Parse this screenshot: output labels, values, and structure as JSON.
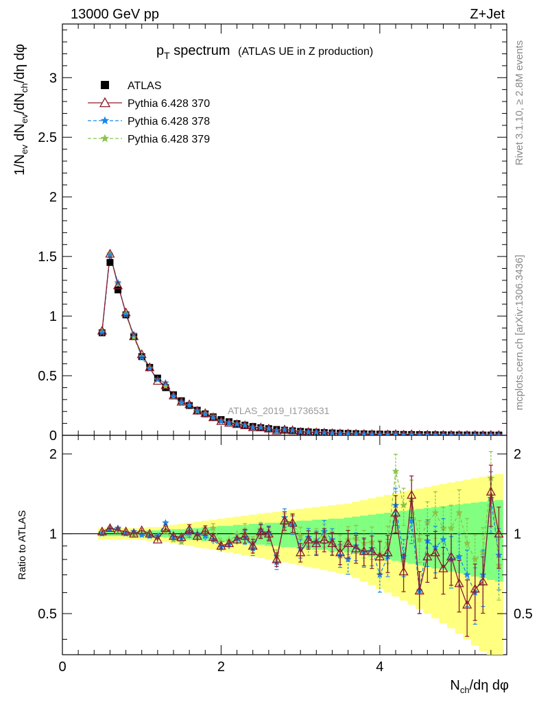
{
  "header": {
    "left": "13000 GeV pp",
    "right": "Z+Jet"
  },
  "title": {
    "main_base": "p",
    "main_sub": "T",
    "main_rest": " spectrum",
    "detail": "(ATLAS UE in Z production)"
  },
  "side_labels": {
    "rivet": "Rivet 3.1.10, ≥ 2.8M events",
    "mcplots": "mcplots.cern.ch [arXiv:1306.3436]"
  },
  "watermark": "ATLAS_2019_I1736531",
  "axes": {
    "top_ylabel": "1/N_ev dN_ev/dN_ch/dη dφ",
    "bottom_ylabel": "Ratio to ATLAS",
    "xlabel": "N_ch/dη dφ",
    "x_ticks": [
      "0",
      "2",
      "4"
    ],
    "top_y_ticks": [
      "0",
      "0.5",
      "1",
      "1.5",
      "2",
      "2.5",
      "3"
    ],
    "ratio_y_ticks": [
      "0.5",
      "1",
      "2"
    ]
  },
  "legend": [
    {
      "label": "ATLAS",
      "style": "data",
      "color": "#000000"
    },
    {
      "label": "Pythia 6.428 370",
      "style": "triangle",
      "color": "#8b1a2b"
    },
    {
      "label": "Pythia 6.428 378",
      "style": "star-dash",
      "color": "#1e88e5"
    },
    {
      "label": "Pythia 6.428 379",
      "style": "star-dash",
      "color": "#8bc34a"
    }
  ],
  "chart_data": {
    "type": "line",
    "xlim": [
      0,
      5.6
    ],
    "ylim": [
      0,
      3.45
    ],
    "ratio_ylim": [
      0.35,
      2.35
    ],
    "ratio_log": true,
    "band_colors": {
      "outer": "#ffff80",
      "inner": "#80ff80"
    },
    "x": [
      0.5,
      0.6,
      0.7,
      0.8,
      0.9,
      1.0,
      1.1,
      1.2,
      1.3,
      1.4,
      1.5,
      1.6,
      1.7,
      1.8,
      1.9,
      2.0,
      2.1,
      2.2,
      2.3,
      2.4,
      2.5,
      2.6,
      2.7,
      2.8,
      2.9,
      3.0,
      3.1,
      3.2,
      3.3,
      3.4,
      3.5,
      3.6,
      3.7,
      3.8,
      3.9,
      4.0,
      4.1,
      4.2,
      4.3,
      4.4,
      4.5,
      4.6,
      4.7,
      4.8,
      4.9,
      5.0,
      5.1,
      5.2,
      5.3,
      5.4,
      5.5
    ],
    "data": [
      0.86,
      1.45,
      1.22,
      1.01,
      0.83,
      0.66,
      0.57,
      0.48,
      0.4,
      0.34,
      0.29,
      0.25,
      0.21,
      0.18,
      0.155,
      0.132,
      0.114,
      0.098,
      0.085,
      0.074,
      0.064,
      0.056,
      0.049,
      0.043,
      0.038,
      0.033,
      0.029,
      0.026,
      0.023,
      0.02,
      0.018,
      0.016,
      0.014,
      0.0125,
      0.011,
      0.01,
      0.009,
      0.008,
      0.0072,
      0.0065,
      0.0058,
      0.0052,
      0.0047,
      0.0042,
      0.0038,
      0.0034,
      0.0031,
      0.0028,
      0.0025,
      0.0023,
      0.0021
    ],
    "band_outer": [
      0.05,
      0.05,
      0.05,
      0.05,
      0.05,
      0.05,
      0.06,
      0.06,
      0.07,
      0.08,
      0.09,
      0.1,
      0.11,
      0.12,
      0.13,
      0.14,
      0.15,
      0.16,
      0.17,
      0.18,
      0.19,
      0.2,
      0.21,
      0.22,
      0.23,
      0.24,
      0.25,
      0.26,
      0.27,
      0.28,
      0.29,
      0.3,
      0.32,
      0.34,
      0.36,
      0.38,
      0.4,
      0.42,
      0.44,
      0.46,
      0.48,
      0.5,
      0.52,
      0.54,
      0.56,
      0.58,
      0.6,
      0.62,
      0.64,
      0.66,
      0.68
    ],
    "band_inner": [
      0.02,
      0.02,
      0.02,
      0.02,
      0.02,
      0.02,
      0.03,
      0.03,
      0.03,
      0.04,
      0.04,
      0.05,
      0.05,
      0.06,
      0.06,
      0.07,
      0.07,
      0.08,
      0.08,
      0.09,
      0.09,
      0.1,
      0.1,
      0.11,
      0.11,
      0.12,
      0.12,
      0.13,
      0.13,
      0.14,
      0.14,
      0.15,
      0.16,
      0.17,
      0.18,
      0.19,
      0.2,
      0.21,
      0.22,
      0.23,
      0.24,
      0.25,
      0.26,
      0.27,
      0.28,
      0.29,
      0.3,
      0.31,
      0.32,
      0.33,
      0.34
    ],
    "series": [
      {
        "name": "Pythia 6.428 370",
        "color": "#8b1a2b",
        "style": "solid",
        "marker": "triangle",
        "ratio": [
          1.02,
          1.05,
          1.03,
          1.02,
          1.0,
          1.03,
          1.0,
          0.95,
          1.05,
          0.98,
          0.97,
          1.04,
          0.98,
          1.03,
          0.97,
          0.9,
          0.92,
          0.95,
          0.98,
          0.9,
          1.02,
          1.0,
          0.8,
          1.12,
          1.1,
          0.85,
          0.95,
          0.92,
          0.95,
          0.92,
          0.85,
          0.92,
          0.88,
          0.86,
          0.86,
          0.82,
          0.85,
          1.2,
          0.72,
          1.4,
          0.61,
          0.82,
          0.85,
          0.74,
          0.82,
          0.65,
          0.54,
          0.62,
          0.66,
          1.44,
          1.0
        ],
        "err": [
          0.01,
          0.01,
          0.01,
          0.01,
          0.01,
          0.01,
          0.01,
          0.01,
          0.01,
          0.01,
          0.01,
          0.02,
          0.02,
          0.02,
          0.02,
          0.02,
          0.02,
          0.02,
          0.03,
          0.03,
          0.03,
          0.03,
          0.03,
          0.04,
          0.04,
          0.04,
          0.04,
          0.05,
          0.05,
          0.05,
          0.05,
          0.06,
          0.06,
          0.06,
          0.07,
          0.07,
          0.08,
          0.08,
          0.08,
          0.09,
          0.09,
          0.1,
          0.1,
          0.1,
          0.11,
          0.11,
          0.12,
          0.12,
          0.12,
          0.13,
          0.13
        ]
      },
      {
        "name": "Pythia 6.428 378",
        "color": "#1e88e5",
        "style": "dash",
        "marker": "star",
        "ratio": [
          1.0,
          1.04,
          1.05,
          1.0,
          1.02,
          0.99,
          0.98,
          0.98,
          1.1,
          0.97,
          0.96,
          1.01,
          1.0,
          0.98,
          0.95,
          0.89,
          0.91,
          0.96,
          0.97,
          0.88,
          1.03,
          1.01,
          0.78,
          1.15,
          1.08,
          0.88,
          0.97,
          0.93,
          1.02,
          0.95,
          0.83,
          0.8,
          0.9,
          0.85,
          0.88,
          0.7,
          0.82,
          1.28,
          0.82,
          1.12,
          0.61,
          0.94,
          0.89,
          0.95,
          0.8,
          0.82,
          0.7,
          0.6,
          0.7,
          1.36,
          0.83
        ],
        "err": [
          0.01,
          0.01,
          0.01,
          0.01,
          0.01,
          0.01,
          0.01,
          0.01,
          0.01,
          0.01,
          0.01,
          0.02,
          0.02,
          0.02,
          0.02,
          0.02,
          0.02,
          0.02,
          0.03,
          0.03,
          0.03,
          0.03,
          0.03,
          0.04,
          0.04,
          0.04,
          0.04,
          0.05,
          0.05,
          0.05,
          0.05,
          0.06,
          0.06,
          0.06,
          0.07,
          0.07,
          0.08,
          0.08,
          0.08,
          0.09,
          0.09,
          0.1,
          0.1,
          0.1,
          0.11,
          0.11,
          0.12,
          0.12,
          0.12,
          0.13,
          0.13
        ]
      },
      {
        "name": "Pythia 6.428 379",
        "color": "#8bc34a",
        "style": "dash",
        "marker": "star",
        "ratio": [
          1.01,
          1.05,
          1.04,
          1.01,
          0.99,
          1.0,
          0.99,
          0.97,
          1.02,
          0.95,
          0.93,
          1.0,
          0.97,
          1.01,
          1.05,
          0.93,
          0.94,
          0.99,
          1.03,
          0.92,
          1.04,
          0.98,
          0.82,
          1.1,
          1.09,
          0.98,
          0.9,
          0.95,
          0.99,
          0.93,
          0.9,
          0.95,
          0.96,
          0.92,
          0.93,
          0.83,
          0.92,
          1.72,
          1.28,
          1.35,
          0.95,
          1.1,
          1.2,
          1.05,
          1.05,
          1.2,
          0.92,
          0.8,
          0.85,
          1.62,
          0.76
        ],
        "err": [
          0.01,
          0.01,
          0.01,
          0.01,
          0.01,
          0.01,
          0.01,
          0.01,
          0.01,
          0.01,
          0.01,
          0.02,
          0.02,
          0.02,
          0.02,
          0.02,
          0.02,
          0.02,
          0.03,
          0.03,
          0.03,
          0.03,
          0.03,
          0.04,
          0.04,
          0.04,
          0.04,
          0.05,
          0.05,
          0.05,
          0.05,
          0.06,
          0.06,
          0.06,
          0.07,
          0.07,
          0.08,
          0.08,
          0.08,
          0.09,
          0.09,
          0.1,
          0.1,
          0.1,
          0.11,
          0.11,
          0.12,
          0.12,
          0.12,
          0.13,
          0.13
        ]
      }
    ]
  }
}
